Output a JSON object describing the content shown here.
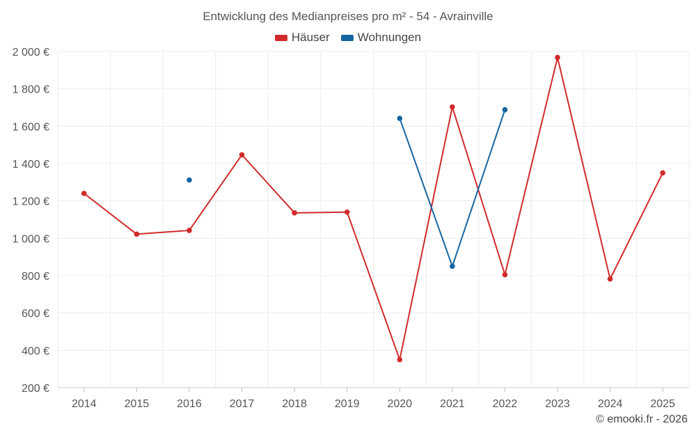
{
  "chart_data": {
    "type": "line",
    "title": "Entwicklung des Medianpreises pro m² - 54 - Avrainville",
    "categories": [
      "2014",
      "2015",
      "2016",
      "2017",
      "2018",
      "2019",
      "2020",
      "2021",
      "2022",
      "2023",
      "2024",
      "2025"
    ],
    "yticks": [
      "200 €",
      "400 €",
      "600 €",
      "800 €",
      "1 000 €",
      "1 200 €",
      "1 400 €",
      "1 600 €",
      "1 800 €",
      "2 000 €"
    ],
    "ylim": [
      200,
      2000
    ],
    "series": [
      {
        "name": "Häuser",
        "color": "#d12a2a",
        "values": [
          1240,
          1022,
          1042,
          1447,
          1136,
          1140,
          350,
          1703,
          805,
          1968,
          782,
          1350
        ]
      },
      {
        "name": "Wohnungen",
        "color": "#1466a0",
        "values": [
          null,
          null,
          1312,
          null,
          null,
          null,
          1642,
          850,
          1688,
          null,
          null,
          null
        ]
      }
    ],
    "credit": "© emooki.fr - 2026"
  }
}
